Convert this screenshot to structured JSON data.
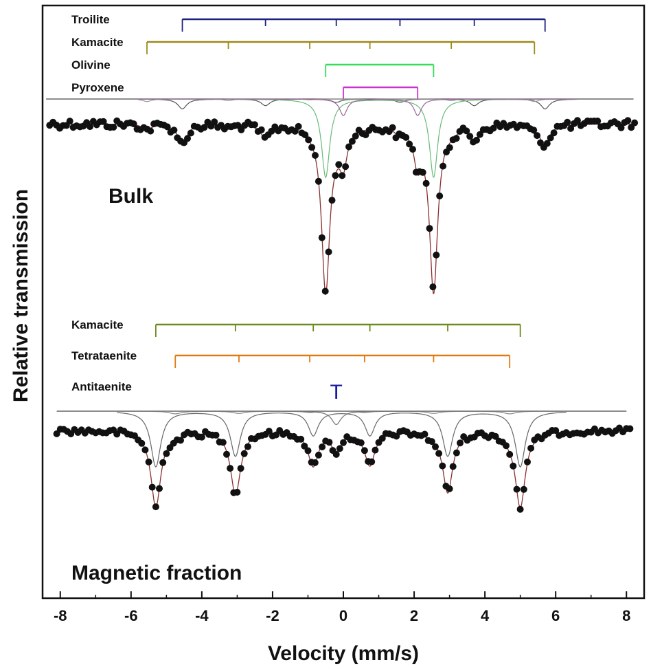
{
  "chart_data": {
    "type": "scatter",
    "title": "",
    "xlabel": "Velocity (mm/s)",
    "ylabel": "Relative transmission",
    "xlim": [
      -8.5,
      8.5
    ],
    "x_ticks": [
      -8,
      -6,
      -4,
      -2,
      0,
      2,
      4,
      6,
      8
    ],
    "x_tick_labels": [
      "-8",
      "-6",
      "-4",
      "-2",
      "0",
      "2",
      "4",
      "6",
      "8"
    ],
    "grid": false,
    "panels": [
      {
        "label": "Bulk",
        "phases": [
          {
            "name": "Troilite",
            "color": "#1a237e",
            "lines": [
              -4.55,
              -2.2,
              -0.2,
              1.6,
              3.7,
              5.7
            ]
          },
          {
            "name": "Kamacite",
            "color": "#9e8a1a",
            "lines": [
              -5.55,
              -3.25,
              -0.95,
              0.75,
              3.05,
              5.4
            ]
          },
          {
            "name": "Olivine",
            "color": "#33dd55",
            "lines": [
              -0.5,
              2.55
            ]
          },
          {
            "name": "Pyroxene",
            "color": "#cc33cc",
            "lines": [
              0.0,
              2.1
            ]
          }
        ],
        "components": [
          {
            "name": "Troilite",
            "color": "#555555",
            "positions": [
              -4.55,
              -2.2,
              -0.2,
              1.6,
              3.7,
              5.7
            ],
            "depths": [
              0.12,
              0.08,
              0.04,
              0.04,
              0.08,
              0.12
            ],
            "width": 0.15
          },
          {
            "name": "Kamacite",
            "color": "#999999",
            "positions": [
              -5.55,
              -3.25,
              -0.95,
              0.75,
              3.05,
              5.4
            ],
            "depths": [
              0.03,
              0.02,
              0.01,
              0.01,
              0.02,
              0.03
            ],
            "width": 0.15
          },
          {
            "name": "Olivine",
            "color": "#66bb77",
            "positions": [
              -0.5,
              2.55
            ],
            "depths": [
              0.95,
              0.95
            ],
            "width": 0.14
          },
          {
            "name": "Pyroxene",
            "color": "#996699",
            "positions": [
              0.0,
              2.1
            ],
            "depths": [
              0.2,
              0.2
            ],
            "width": 0.13
          }
        ]
      },
      {
        "label": "Magnetic fraction",
        "phases": [
          {
            "name": "Kamacite",
            "color": "#6b8a1a",
            "lines": [
              -5.3,
              -3.05,
              -0.85,
              0.75,
              2.95,
              5.0
            ]
          },
          {
            "name": "Tetrataenite",
            "color": "#e07a10",
            "lines": [
              -4.75,
              -2.95,
              -0.95,
              0.6,
              2.55,
              4.7
            ]
          },
          {
            "name": "Antitaenite",
            "color": "#1a1aa0",
            "lines": [
              -0.2
            ],
            "glyph": "T"
          }
        ],
        "components": [
          {
            "name": "Kamacite",
            "color": "#666666",
            "positions": [
              -5.3,
              -3.05,
              -0.85,
              0.75,
              2.95,
              5.0
            ],
            "depths": [
              0.62,
              0.5,
              0.27,
              0.27,
              0.5,
              0.62
            ],
            "width": 0.17
          },
          {
            "name": "Tetrataenite",
            "color": "#888888",
            "positions": [
              -4.75,
              -2.95,
              -0.95,
              0.6,
              2.55,
              4.7
            ],
            "depths": [
              0.03,
              0.025,
              0.015,
              0.015,
              0.025,
              0.03
            ],
            "width": 0.2
          },
          {
            "name": "Antitaenite",
            "color": "#777777",
            "positions": [
              -0.2
            ],
            "depths": [
              0.15
            ],
            "width": 0.16
          }
        ]
      }
    ]
  }
}
